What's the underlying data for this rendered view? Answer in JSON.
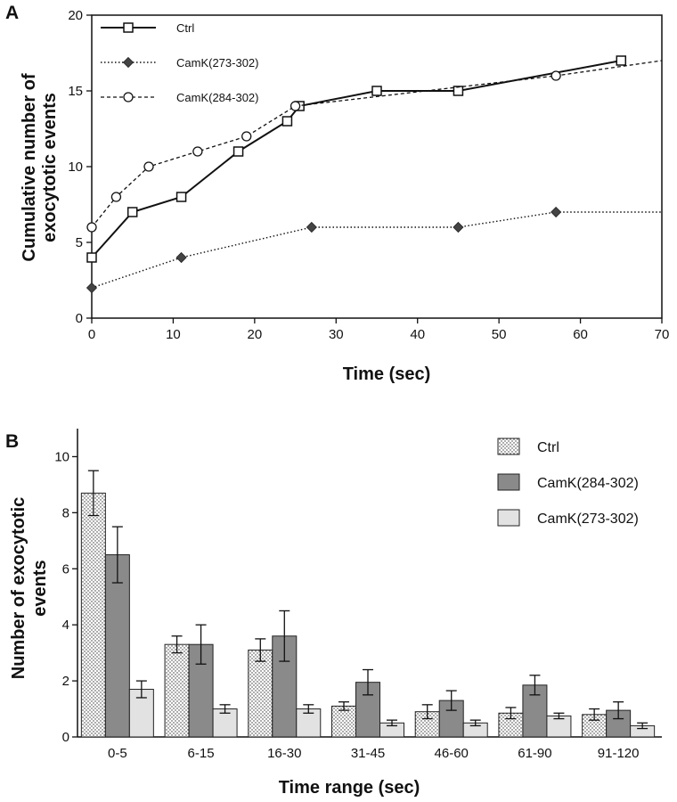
{
  "chart_data": [
    {
      "panel_label": "A",
      "type": "line",
      "xlabel": "Time (sec)",
      "ylabel": [
        "Cumulative number of",
        "exocytotic events"
      ],
      "xlim": [
        0,
        70
      ],
      "ylim": [
        0,
        20
      ],
      "xticks": [
        0,
        10,
        20,
        30,
        40,
        50,
        60,
        70
      ],
      "yticks": [
        0,
        5,
        10,
        15,
        20
      ],
      "legend_position": "top-left",
      "series": [
        {
          "name": "Ctrl",
          "marker": "open-square",
          "line": "solid",
          "x": [
            0,
            5,
            11,
            18,
            24,
            25.5,
            35,
            45,
            65
          ],
          "y": [
            4,
            7,
            8,
            11,
            13,
            14,
            15,
            15,
            17
          ],
          "extend_to": null
        },
        {
          "name": "CamK(273-302)",
          "marker": "filled-diamond",
          "line": "dotted",
          "x": [
            0,
            11,
            27,
            45,
            57
          ],
          "y": [
            2,
            4,
            6,
            6,
            7
          ],
          "extend_to": [
            70,
            7
          ]
        },
        {
          "name": "CamK(284-302)",
          "marker": "open-circle",
          "line": "dashed",
          "x": [
            0,
            3,
            7,
            13,
            19,
            25,
            57
          ],
          "y": [
            6,
            8,
            10,
            11,
            12,
            14,
            16
          ],
          "extend_to": [
            70,
            17
          ]
        }
      ]
    },
    {
      "panel_label": "B",
      "type": "bar",
      "xlabel": "Time range (sec)",
      "ylabel": [
        "Number of exocytotic",
        "events"
      ],
      "ylim": [
        0,
        11
      ],
      "yticks": [
        0,
        2,
        4,
        6,
        8,
        10
      ],
      "legend_position": "top-right",
      "categories": [
        "0-5",
        "6-15",
        "16-30",
        "31-45",
        "46-60",
        "61-90",
        "91-120"
      ],
      "series": [
        {
          "name": "Ctrl",
          "fill": "dotted",
          "values": [
            8.7,
            3.3,
            3.1,
            1.1,
            0.9,
            0.85,
            0.8
          ],
          "errors": [
            0.8,
            0.3,
            0.4,
            0.15,
            0.25,
            0.2,
            0.2
          ]
        },
        {
          "name": "CamK(284-302)",
          "fill": "dark-gray",
          "values": [
            6.5,
            3.3,
            3.6,
            1.95,
            1.3,
            1.85,
            0.95
          ],
          "errors": [
            1.0,
            0.7,
            0.9,
            0.45,
            0.35,
            0.35,
            0.3
          ]
        },
        {
          "name": "CamK(273-302)",
          "fill": "light-gray",
          "values": [
            1.7,
            1.0,
            1.0,
            0.5,
            0.5,
            0.75,
            0.4
          ],
          "errors": [
            0.3,
            0.15,
            0.15,
            0.1,
            0.1,
            0.1,
            0.1
          ]
        }
      ]
    }
  ]
}
